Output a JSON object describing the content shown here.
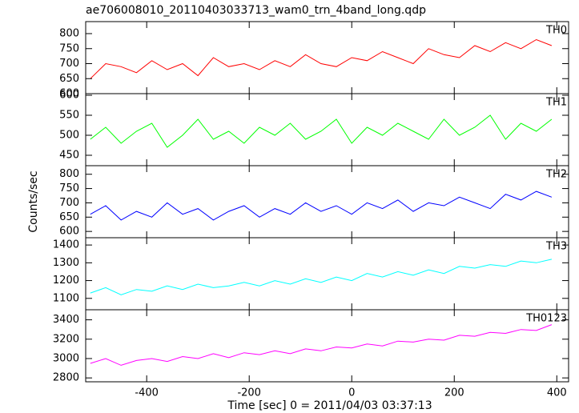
{
  "chart_data": {
    "type": "line",
    "title": "ae706008010_20110403033713_wam0_trn_4band_long.qdp",
    "x_label": "Time [sec] 0 = 2011/04/03 03:37:13",
    "y_label": "Counts/sec",
    "xlim": [
      -519,
      423
    ],
    "xticks": [
      -400,
      -200,
      0,
      200,
      400
    ],
    "x": [
      -510,
      -480,
      -450,
      -420,
      -390,
      -360,
      -330,
      -300,
      -270,
      -240,
      -210,
      -180,
      -150,
      -120,
      -90,
      -60,
      -30,
      0,
      30,
      60,
      90,
      120,
      150,
      180,
      210,
      240,
      270,
      300,
      330,
      360,
      390
    ],
    "series": [
      {
        "name": "TH0",
        "color": "#ff0000",
        "ylim": [
          600,
          840
        ],
        "yticks": [
          600,
          650,
          700,
          750,
          800
        ],
        "values": [
          650,
          700,
          690,
          670,
          710,
          680,
          700,
          660,
          720,
          690,
          700,
          680,
          710,
          690,
          730,
          700,
          690,
          720,
          710,
          740,
          720,
          700,
          750,
          730,
          720,
          760,
          740,
          770,
          750,
          780,
          760
        ]
      },
      {
        "name": "TH1",
        "color": "#00ff00",
        "ylim": [
          424,
          604
        ],
        "yticks": [
          450,
          500,
          550,
          600
        ],
        "values": [
          490,
          520,
          480,
          510,
          530,
          470,
          500,
          540,
          490,
          510,
          480,
          520,
          500,
          530,
          490,
          510,
          540,
          480,
          520,
          500,
          530,
          510,
          490,
          540,
          500,
          520,
          550,
          490,
          530,
          510,
          540
        ]
      },
      {
        "name": "TH2",
        "color": "#0000ff",
        "ylim": [
          578,
          830
        ],
        "yticks": [
          600,
          650,
          700,
          750,
          800
        ],
        "values": [
          660,
          690,
          640,
          670,
          650,
          700,
          660,
          680,
          640,
          670,
          690,
          650,
          680,
          660,
          700,
          670,
          690,
          660,
          700,
          680,
          710,
          670,
          700,
          690,
          720,
          700,
          680,
          730,
          710,
          740,
          720
        ]
      },
      {
        "name": "TH3",
        "color": "#00ffff",
        "ylim": [
          1036,
          1441
        ],
        "yticks": [
          1100,
          1200,
          1300,
          1400
        ],
        "values": [
          1130,
          1160,
          1120,
          1150,
          1140,
          1170,
          1150,
          1180,
          1160,
          1170,
          1190,
          1170,
          1200,
          1180,
          1210,
          1190,
          1220,
          1200,
          1240,
          1220,
          1250,
          1230,
          1260,
          1240,
          1280,
          1270,
          1290,
          1280,
          1310,
          1300,
          1320
        ]
      },
      {
        "name": "TH0123",
        "color": "#ff00ff",
        "ylim": [
          2760,
          3504
        ],
        "yticks": [
          2800,
          3000,
          3200,
          3400
        ],
        "values": [
          2950,
          3000,
          2930,
          2980,
          3000,
          2970,
          3020,
          3000,
          3050,
          3010,
          3060,
          3040,
          3080,
          3050,
          3100,
          3080,
          3120,
          3110,
          3150,
          3130,
          3180,
          3170,
          3200,
          3190,
          3240,
          3230,
          3270,
          3260,
          3300,
          3290,
          3350
        ]
      }
    ]
  }
}
